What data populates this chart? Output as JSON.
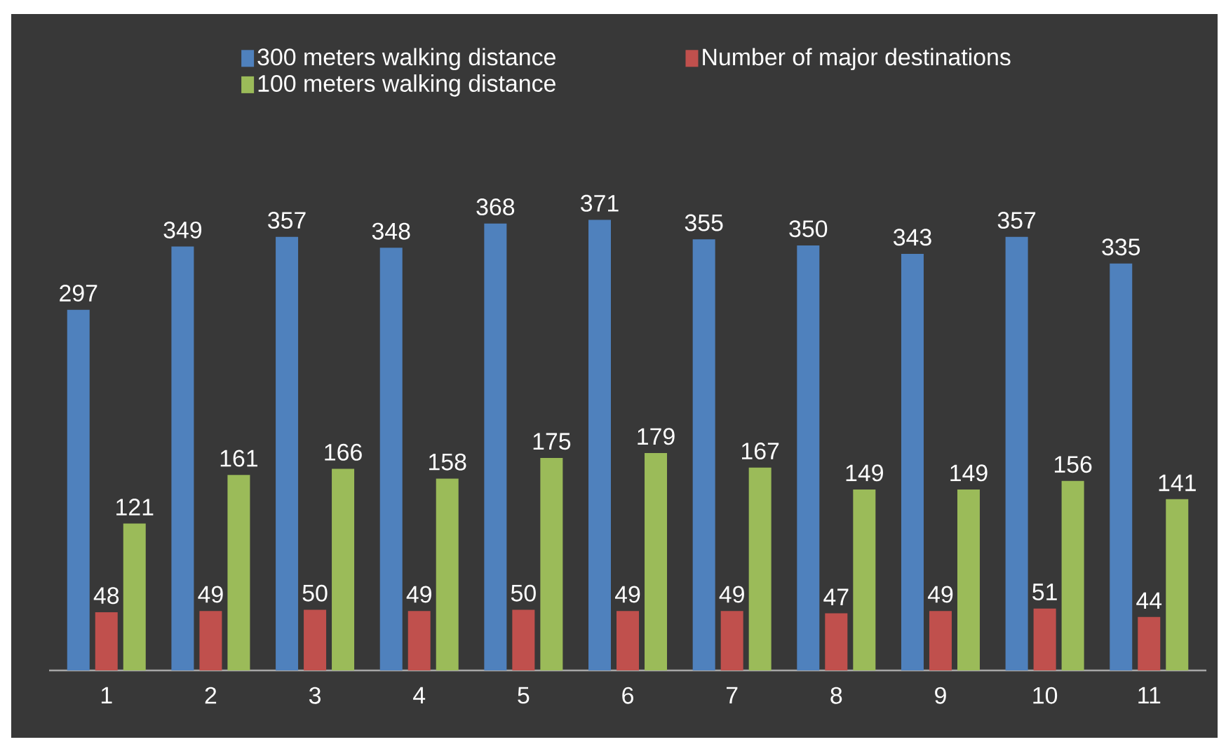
{
  "chart_data": {
    "type": "bar",
    "categories": [
      "1",
      "2",
      "3",
      "4",
      "5",
      "6",
      "7",
      "8",
      "9",
      "10",
      "11"
    ],
    "series": [
      {
        "name": "300 meters walking distance",
        "color": "#4f81bd",
        "values": [
          297,
          349,
          357,
          348,
          368,
          371,
          355,
          350,
          343,
          357,
          335
        ]
      },
      {
        "name": "Number of major destinations",
        "color": "#c0504d",
        "values": [
          48,
          49,
          50,
          49,
          50,
          49,
          49,
          47,
          49,
          51,
          44
        ]
      },
      {
        "name": "100 meters walking distance",
        "color": "#9bbb59",
        "values": [
          121,
          161,
          166,
          158,
          175,
          179,
          167,
          149,
          149,
          156,
          141
        ]
      }
    ],
    "data_labels": true,
    "legend": "top",
    "tick_labels": "x"
  }
}
